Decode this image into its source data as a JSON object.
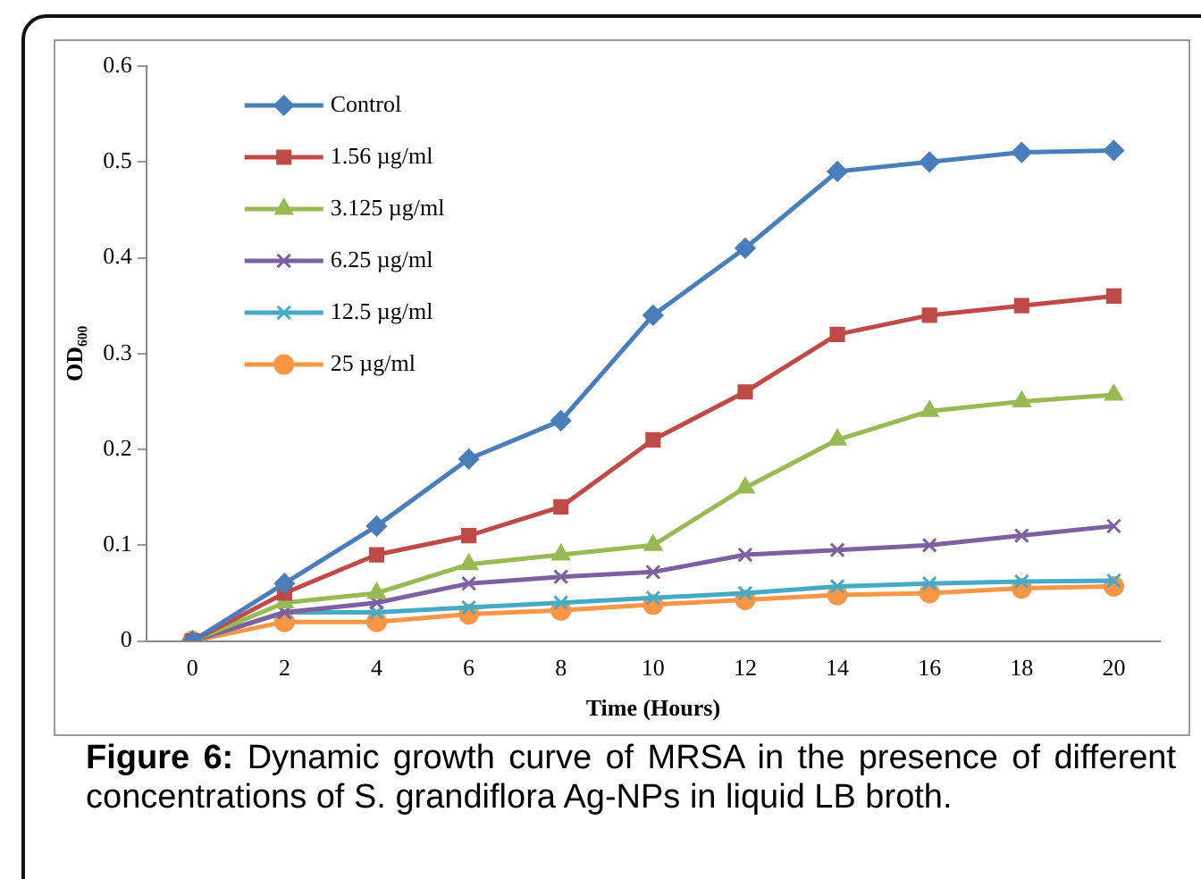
{
  "chart_data": {
    "type": "line",
    "xlabel": "Time (Hours)",
    "ylabel": "OD₆₀₀",
    "categories": [
      "0",
      "2",
      "4",
      "6",
      "8",
      "10",
      "12",
      "14",
      "16",
      "18",
      "20"
    ],
    "series": [
      {
        "name": "Control",
        "color": "#4a7ebb",
        "marker": "diamond",
        "values": [
          0,
          0.06,
          0.12,
          0.19,
          0.23,
          0.34,
          0.41,
          0.49,
          0.5,
          0.51,
          0.512
        ]
      },
      {
        "name": "1.56 µg/ml",
        "color": "#be4b48",
        "marker": "square",
        "values": [
          0,
          0.05,
          0.09,
          0.11,
          0.14,
          0.21,
          0.26,
          0.32,
          0.34,
          0.35,
          0.36
        ]
      },
      {
        "name": "3.125 µg/ml",
        "color": "#98b954",
        "marker": "triangle",
        "values": [
          0,
          0.04,
          0.05,
          0.08,
          0.09,
          0.1,
          0.16,
          0.21,
          0.24,
          0.25,
          0.257
        ]
      },
      {
        "name": "6.25 µg/ml",
        "color": "#7d60a0",
        "marker": "cross",
        "values": [
          0,
          0.03,
          0.04,
          0.06,
          0.067,
          0.072,
          0.09,
          0.095,
          0.1,
          0.11,
          0.12
        ]
      },
      {
        "name": "12.5 µg/ml",
        "color": "#46aac5",
        "marker": "cross",
        "values": [
          0,
          0.03,
          0.03,
          0.035,
          0.04,
          0.045,
          0.05,
          0.057,
          0.06,
          0.062,
          0.063
        ]
      },
      {
        "name": "25 µg/ml",
        "color": "#f79646",
        "marker": "circle",
        "values": [
          0,
          0.02,
          0.02,
          0.028,
          0.032,
          0.038,
          0.043,
          0.048,
          0.05,
          0.055,
          0.057
        ]
      }
    ],
    "ylim": [
      0,
      0.6
    ],
    "yticks": [
      0,
      0.1,
      0.2,
      0.3,
      0.4,
      0.5,
      0.6
    ],
    "grid": false,
    "legend": "top left",
    "line_style": "solid",
    "annotations": [
      "Figure 6: Dynamic growth curve of MRSA in the presence of different concentrations of S. grandiflora Ag-NPs in liquid LB broth."
    ]
  }
}
